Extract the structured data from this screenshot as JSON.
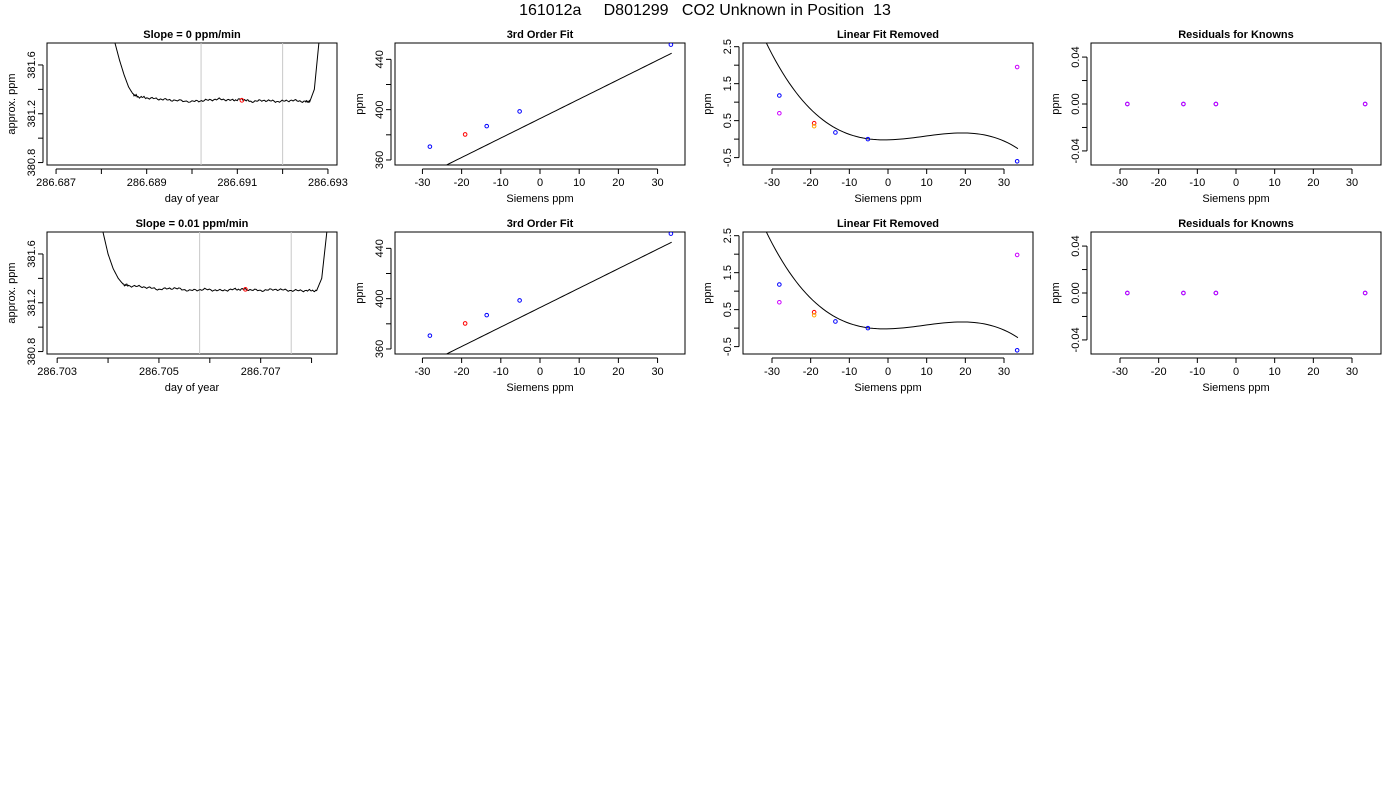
{
  "figure": {
    "title": "161012a     D801299   CO2 Unknown in Position  13"
  },
  "chart_data": [
    {
      "type": "line",
      "title": "Slope =  0  ppm/min",
      "xlabel": "day of year",
      "ylabel": "approx. ppm",
      "xlim": [
        286.6868,
        286.6932
      ],
      "ylim": [
        380.78,
        381.78
      ],
      "x_ticks": [
        286.687,
        286.688,
        286.689,
        286.69,
        286.691,
        286.692,
        286.693
      ],
      "x_tick_labels": [
        "286.687",
        "",
        "286.689",
        "",
        "286.691",
        "",
        "286.693"
      ],
      "y_ticks": [
        380.8,
        381.0,
        381.2,
        381.4,
        381.6
      ],
      "y_tick_labels": [
        "380.8",
        "",
        "381.2",
        "",
        "381.6"
      ],
      "vlines": [
        286.6902,
        286.692
      ],
      "series": [
        {
          "values_x": [
            286.6883,
            286.6884,
            286.6885,
            286.6886,
            286.6887,
            286.6888,
            286.689,
            286.6893,
            286.6896,
            286.69,
            286.6903,
            286.6906,
            286.6909,
            286.6911,
            286.6913,
            286.6916,
            286.6919,
            286.6922,
            286.6925,
            286.6926,
            286.6927,
            286.6928
          ],
          "values_y": [
            381.78,
            381.64,
            381.52,
            381.42,
            381.36,
            381.34,
            381.33,
            381.32,
            381.31,
            381.3,
            381.31,
            381.32,
            381.31,
            381.32,
            381.3,
            381.31,
            381.3,
            381.31,
            381.3,
            381.3,
            381.4,
            381.78
          ]
        }
      ],
      "markers": [
        {
          "x": 286.6911,
          "y": 381.31,
          "color": "#ff0000"
        }
      ]
    },
    {
      "type": "scatter",
      "title": "3rd Order Fit",
      "xlabel": "Siemens ppm",
      "ylabel": "ppm",
      "xlim": [
        -37,
        37
      ],
      "ylim": [
        356,
        453
      ],
      "x_ticks": [
        -30,
        -20,
        -10,
        0,
        10,
        20,
        30
      ],
      "x_tick_labels": [
        "-30",
        "-20",
        "-10",
        "0",
        "10",
        "20",
        "30"
      ],
      "y_ticks": [
        360,
        380,
        400,
        420,
        440
      ],
      "y_tick_labels": [
        "360",
        "",
        "400",
        "",
        "440"
      ],
      "curve": {
        "coeffs": [
          392.9,
          1.547
        ],
        "x_from": -36,
        "x_to": 33.6
      },
      "series": [
        {
          "x": [
            -28.1,
            -13.6,
            -5.2,
            33.4
          ],
          "y": [
            370.6,
            386.9,
            398.6,
            451.7
          ],
          "color": "#0000ff"
        },
        {
          "x": [
            -19.1
          ],
          "y": [
            380.3
          ],
          "color": "#ff0000"
        }
      ]
    },
    {
      "type": "scatter",
      "title": "Linear Fit Removed",
      "xlabel": "Siemens ppm",
      "ylabel": "ppm",
      "xlim": [
        -37.5,
        37.5
      ],
      "ylim": [
        -0.7,
        2.6
      ],
      "x_ticks": [
        -30,
        -20,
        -10,
        0,
        10,
        20,
        30
      ],
      "x_tick_labels": [
        "-30",
        "-20",
        "-10",
        "0",
        "10",
        "20",
        "30"
      ],
      "y_ticks": [
        -0.5,
        0.0,
        0.5,
        1.0,
        1.5,
        2.0,
        2.5
      ],
      "y_tick_labels": [
        "-0.5",
        "",
        "0.5",
        "",
        "1.5",
        "",
        "2.5"
      ],
      "curve": {
        "coeffs": [
          0.0,
          -0.001
        ],
        "x_from": -36,
        "x_to": 33.6
      },
      "series": [
        {
          "x": [
            -28.1,
            -13.6,
            -5.2,
            33.4
          ],
          "y": [
            1.18,
            0.18,
            0.0,
            -0.6
          ],
          "color": "#0000ff"
        },
        {
          "x": [
            -19.1
          ],
          "y": [
            0.43
          ],
          "color": "#ff0000"
        },
        {
          "x": [
            -19.1
          ],
          "y": [
            0.35
          ],
          "color": "#ffa500"
        },
        {
          "x": [
            -28.1,
            33.4
          ],
          "y": [
            0.7,
            1.95
          ],
          "color": "#cc00ff"
        }
      ]
    },
    {
      "type": "scatter",
      "title": "Residuals for Knowns",
      "xlabel": "Siemens ppm",
      "ylabel": "ppm",
      "xlim": [
        -37.5,
        37.5
      ],
      "ylim": [
        -0.052,
        0.052
      ],
      "x_ticks": [
        -30,
        -20,
        -10,
        0,
        10,
        20,
        30
      ],
      "x_tick_labels": [
        "-30",
        "-20",
        "-10",
        "0",
        "10",
        "20",
        "30"
      ],
      "y_ticks": [
        -0.04,
        -0.02,
        0.0,
        0.02,
        0.04
      ],
      "y_tick_labels": [
        "-0.04",
        "",
        "0.00",
        "",
        "0.04"
      ],
      "series": [
        {
          "x": [
            -28.1,
            -13.6,
            -5.2,
            33.4
          ],
          "y": [
            0,
            0,
            0,
            0
          ],
          "color": "#0000ff"
        },
        {
          "x": [
            -28.1,
            -13.6,
            -5.2,
            33.4
          ],
          "y": [
            0,
            0,
            0,
            0
          ],
          "color": "#cc00ff"
        }
      ]
    },
    {
      "type": "line",
      "title": "Slope =  0.01  ppm/min",
      "xlabel": "day of year",
      "ylabel": "approx. ppm",
      "xlim": [
        286.7028,
        286.7085
      ],
      "ylim": [
        380.78,
        381.78
      ],
      "x_ticks": [
        286.703,
        286.704,
        286.705,
        286.706,
        286.707,
        286.708
      ],
      "x_tick_labels": [
        "286.703",
        "",
        "286.705",
        "",
        "286.707",
        ""
      ],
      "y_ticks": [
        380.8,
        381.0,
        381.2,
        381.4,
        381.6
      ],
      "y_tick_labels": [
        "380.8",
        "",
        "381.2",
        "",
        "381.6"
      ],
      "vlines": [
        286.7058,
        286.7076
      ],
      "series": [
        {
          "values_x": [
            286.7039,
            286.704,
            286.7041,
            286.7042,
            286.7043,
            286.7044,
            286.7047,
            286.705,
            286.7053,
            286.7056,
            286.7059,
            286.7062,
            286.7065,
            286.7067,
            286.707,
            286.7073,
            286.7076,
            286.7079,
            286.7081,
            286.7082,
            286.7083
          ],
          "values_y": [
            381.78,
            381.6,
            381.48,
            381.4,
            381.35,
            381.34,
            381.33,
            381.31,
            381.32,
            381.3,
            381.31,
            381.3,
            381.31,
            381.31,
            381.3,
            381.31,
            381.3,
            381.3,
            381.3,
            381.4,
            381.78
          ]
        }
      ],
      "markers": [
        {
          "x": 286.7067,
          "y": 381.31,
          "color": "#ff0000"
        }
      ]
    },
    {
      "type": "scatter",
      "title": "3rd Order Fit",
      "xlabel": "Siemens ppm",
      "ylabel": "ppm",
      "xlim": [
        -37,
        37
      ],
      "ylim": [
        356,
        453
      ],
      "x_ticks": [
        -30,
        -20,
        -10,
        0,
        10,
        20,
        30
      ],
      "x_tick_labels": [
        "-30",
        "-20",
        "-10",
        "0",
        "10",
        "20",
        "30"
      ],
      "y_ticks": [
        360,
        380,
        400,
        420,
        440
      ],
      "y_tick_labels": [
        "360",
        "",
        "400",
        "",
        "440"
      ],
      "curve": {
        "coeffs": [
          392.9,
          1.547
        ],
        "x_from": -36,
        "x_to": 33.6
      },
      "series": [
        {
          "x": [
            -28.1,
            -13.6,
            -5.2,
            33.4
          ],
          "y": [
            370.6,
            386.9,
            398.6,
            451.7
          ],
          "color": "#0000ff"
        },
        {
          "x": [
            -19.1
          ],
          "y": [
            380.3
          ],
          "color": "#ff0000"
        }
      ]
    },
    {
      "type": "scatter",
      "title": "Linear Fit Removed",
      "xlabel": "Siemens ppm",
      "ylabel": "ppm",
      "xlim": [
        -37.5,
        37.5
      ],
      "ylim": [
        -0.7,
        2.6
      ],
      "x_ticks": [
        -30,
        -20,
        -10,
        0,
        10,
        20,
        30
      ],
      "x_tick_labels": [
        "-30",
        "-20",
        "-10",
        "0",
        "10",
        "20",
        "30"
      ],
      "y_ticks": [
        -0.5,
        0.0,
        0.5,
        1.0,
        1.5,
        2.0,
        2.5
      ],
      "y_tick_labels": [
        "-0.5",
        "",
        "0.5",
        "",
        "1.5",
        "",
        "2.5"
      ],
      "curve": {
        "coeffs": [
          0.0,
          -0.001
        ],
        "x_from": -36,
        "x_to": 33.6
      },
      "series": [
        {
          "x": [
            -28.1,
            -13.6,
            -5.2,
            33.4
          ],
          "y": [
            1.18,
            0.18,
            0.0,
            -0.6
          ],
          "color": "#0000ff"
        },
        {
          "x": [
            -19.1
          ],
          "y": [
            0.43
          ],
          "color": "#ff0000"
        },
        {
          "x": [
            -19.1
          ],
          "y": [
            0.35
          ],
          "color": "#ffa500"
        },
        {
          "x": [
            -28.1,
            33.4
          ],
          "y": [
            0.7,
            1.98
          ],
          "color": "#cc00ff"
        }
      ]
    },
    {
      "type": "scatter",
      "title": "Residuals for Knowns",
      "xlabel": "Siemens ppm",
      "ylabel": "ppm",
      "xlim": [
        -37.5,
        37.5
      ],
      "ylim": [
        -0.052,
        0.052
      ],
      "x_ticks": [
        -30,
        -20,
        -10,
        0,
        10,
        20,
        30
      ],
      "x_tick_labels": [
        "-30",
        "-20",
        "-10",
        "0",
        "10",
        "20",
        "30"
      ],
      "y_ticks": [
        -0.04,
        -0.02,
        0.0,
        0.02,
        0.04
      ],
      "y_tick_labels": [
        "-0.04",
        "",
        "0.00",
        "",
        "0.04"
      ],
      "series": [
        {
          "x": [
            -28.1,
            -13.6,
            -5.2,
            33.4
          ],
          "y": [
            0,
            0,
            0,
            0
          ],
          "color": "#0000ff"
        },
        {
          "x": [
            -28.1,
            -13.6,
            -5.2,
            33.4
          ],
          "y": [
            0,
            0,
            0,
            0
          ],
          "color": "#cc00ff"
        }
      ]
    }
  ]
}
